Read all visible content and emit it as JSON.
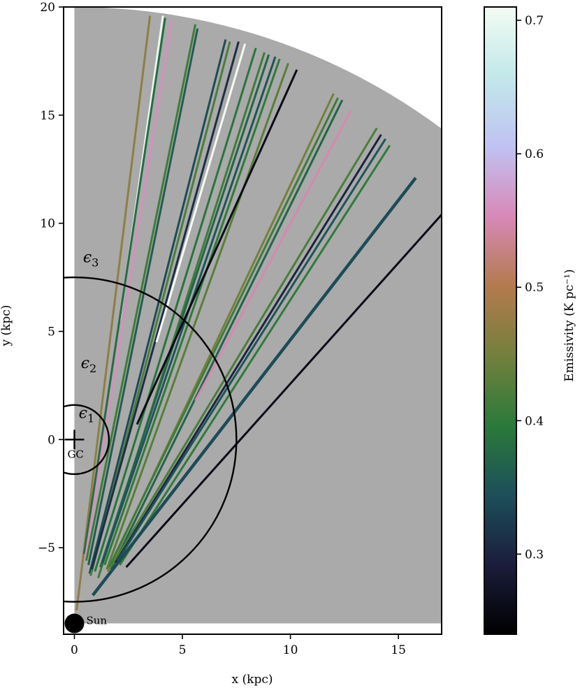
{
  "chart_data": {
    "type": "line",
    "xlabel": "x (kpc)",
    "ylabel": "y (kpc)",
    "xlim": [
      -0.5,
      17
    ],
    "ylim": [
      -9,
      20
    ],
    "grid": false,
    "xticks": [
      0,
      5,
      10,
      15
    ],
    "yticks": [
      -5,
      0,
      5,
      10,
      15,
      20
    ],
    "xtick_labels": [
      "0",
      "5",
      "10",
      "15"
    ],
    "ytick_labels": [
      "−5",
      "0",
      "5",
      "10",
      "15",
      "20"
    ],
    "background_region": {
      "type": "sector",
      "center": [
        0,
        -8.5
      ],
      "radius": 28.5,
      "color": "#aaaaaa"
    },
    "circles": [
      {
        "center": [
          0,
          0
        ],
        "radius": 1.6
      },
      {
        "center": [
          0,
          0
        ],
        "radius": 7.5
      }
    ],
    "region_labels": [
      {
        "base": "ϵ",
        "sub": "3",
        "x": 0.4,
        "y": 8.2
      },
      {
        "base": "ϵ",
        "sub": "2",
        "x": 0.3,
        "y": 3.3
      },
      {
        "base": "ϵ",
        "sub": "1",
        "x": 0.2,
        "y": 1.0
      }
    ],
    "markers": [
      {
        "name": "GC",
        "label": "GC",
        "x": 0,
        "y": 0,
        "symbol": "plus"
      },
      {
        "name": "Sun",
        "label": "Sun",
        "x": 0,
        "y": -8.5,
        "symbol": "filled-circle"
      }
    ],
    "colorbar": {
      "label": "Emissivity (K pc⁻¹)",
      "min": 0.24,
      "max": 0.71,
      "ticks": [
        0.3,
        0.4,
        0.5,
        0.6,
        0.7
      ],
      "tick_labels": [
        "0.3",
        "0.4",
        "0.5",
        "0.6",
        "0.7"
      ],
      "stops": [
        "#000000",
        "#1b1d3c",
        "#1d4f5a",
        "#2a7a3a",
        "#74803c",
        "#b47a4e",
        "#d889b8",
        "#c0c2f2",
        "#c2e8ea",
        "#f3fbf3"
      ]
    },
    "sightlines": [
      {
        "x1": 0.1,
        "y1": -7.9,
        "x2": 3.5,
        "y2": 19.6,
        "emissivity": 0.47,
        "width": 3
      },
      {
        "x1": 2.1,
        "y1": 5.5,
        "x2": 4.1,
        "y2": 19.6,
        "emissivity": 0.7,
        "width": 3
      },
      {
        "x1": 0.45,
        "y1": -5.3,
        "x2": 4.2,
        "y2": 19.5,
        "emissivity": 0.38,
        "width": 3
      },
      {
        "x1": 0.5,
        "y1": -5.5,
        "x2": 4.5,
        "y2": 19.4,
        "emissivity": 0.56,
        "width": 3
      },
      {
        "x1": 0.55,
        "y1": -5.6,
        "x2": 5.6,
        "y2": 19.2,
        "emissivity": 0.41,
        "width": 3
      },
      {
        "x1": 0.65,
        "y1": -5.8,
        "x2": 5.7,
        "y2": 19.0,
        "emissivity": 0.36,
        "width": 3
      },
      {
        "x1": 0.7,
        "y1": -6.2,
        "x2": 7.0,
        "y2": 18.5,
        "emissivity": 0.34,
        "width": 3
      },
      {
        "x1": 0.75,
        "y1": -6.3,
        "x2": 7.2,
        "y2": 18.4,
        "emissivity": 0.42,
        "width": 3
      },
      {
        "x1": 0.8,
        "y1": -6.0,
        "x2": 7.6,
        "y2": 18.4,
        "emissivity": 0.31,
        "width": 3
      },
      {
        "x1": 3.8,
        "y1": 4.5,
        "x2": 7.9,
        "y2": 18.3,
        "emissivity": 0.71,
        "width": 3
      },
      {
        "x1": 0.95,
        "y1": -6.1,
        "x2": 8.4,
        "y2": 18.1,
        "emissivity": 0.39,
        "width": 3
      },
      {
        "x1": 1.1,
        "y1": -6.4,
        "x2": 8.8,
        "y2": 17.9,
        "emissivity": 0.41,
        "width": 3
      },
      {
        "x1": 1.2,
        "y1": -5.9,
        "x2": 9.0,
        "y2": 17.8,
        "emissivity": 0.37,
        "width": 3
      },
      {
        "x1": 1.3,
        "y1": -5.7,
        "x2": 9.3,
        "y2": 17.7,
        "emissivity": 0.35,
        "width": 3
      },
      {
        "x1": 1.4,
        "y1": -5.8,
        "x2": 9.5,
        "y2": 17.6,
        "emissivity": 0.4,
        "width": 3
      },
      {
        "x1": 1.5,
        "y1": -6.0,
        "x2": 9.9,
        "y2": 17.4,
        "emissivity": 0.43,
        "width": 3
      },
      {
        "x1": 2.9,
        "y1": 0.7,
        "x2": 10.3,
        "y2": 17.1,
        "emissivity": 0.26,
        "width": 3
      },
      {
        "x1": 1.55,
        "y1": -6.1,
        "x2": 12.0,
        "y2": 16.0,
        "emissivity": 0.45,
        "width": 3
      },
      {
        "x1": 1.6,
        "y1": -5.9,
        "x2": 12.2,
        "y2": 15.8,
        "emissivity": 0.41,
        "width": 3
      },
      {
        "x1": 1.7,
        "y1": -6.0,
        "x2": 12.4,
        "y2": 15.7,
        "emissivity": 0.37,
        "width": 3
      },
      {
        "x1": 5.6,
        "y1": 1.8,
        "x2": 12.8,
        "y2": 15.2,
        "emissivity": 0.55,
        "width": 3
      },
      {
        "x1": 1.75,
        "y1": -5.8,
        "x2": 14.0,
        "y2": 14.4,
        "emissivity": 0.42,
        "width": 3
      },
      {
        "x1": 1.9,
        "y1": -5.7,
        "x2": 14.2,
        "y2": 14.1,
        "emissivity": 0.3,
        "width": 3
      },
      {
        "x1": 2.0,
        "y1": -5.6,
        "x2": 14.4,
        "y2": 13.9,
        "emissivity": 0.35,
        "width": 3
      },
      {
        "x1": 2.1,
        "y1": -5.8,
        "x2": 14.6,
        "y2": 13.6,
        "emissivity": 0.4,
        "width": 3
      },
      {
        "x1": 0.85,
        "y1": -7.2,
        "x2": 15.8,
        "y2": 12.1,
        "emissivity": 0.34,
        "width": 4.5
      },
      {
        "x1": 2.4,
        "y1": -5.9,
        "x2": 17.0,
        "y2": 10.4,
        "emissivity": 0.26,
        "width": 3
      }
    ]
  }
}
